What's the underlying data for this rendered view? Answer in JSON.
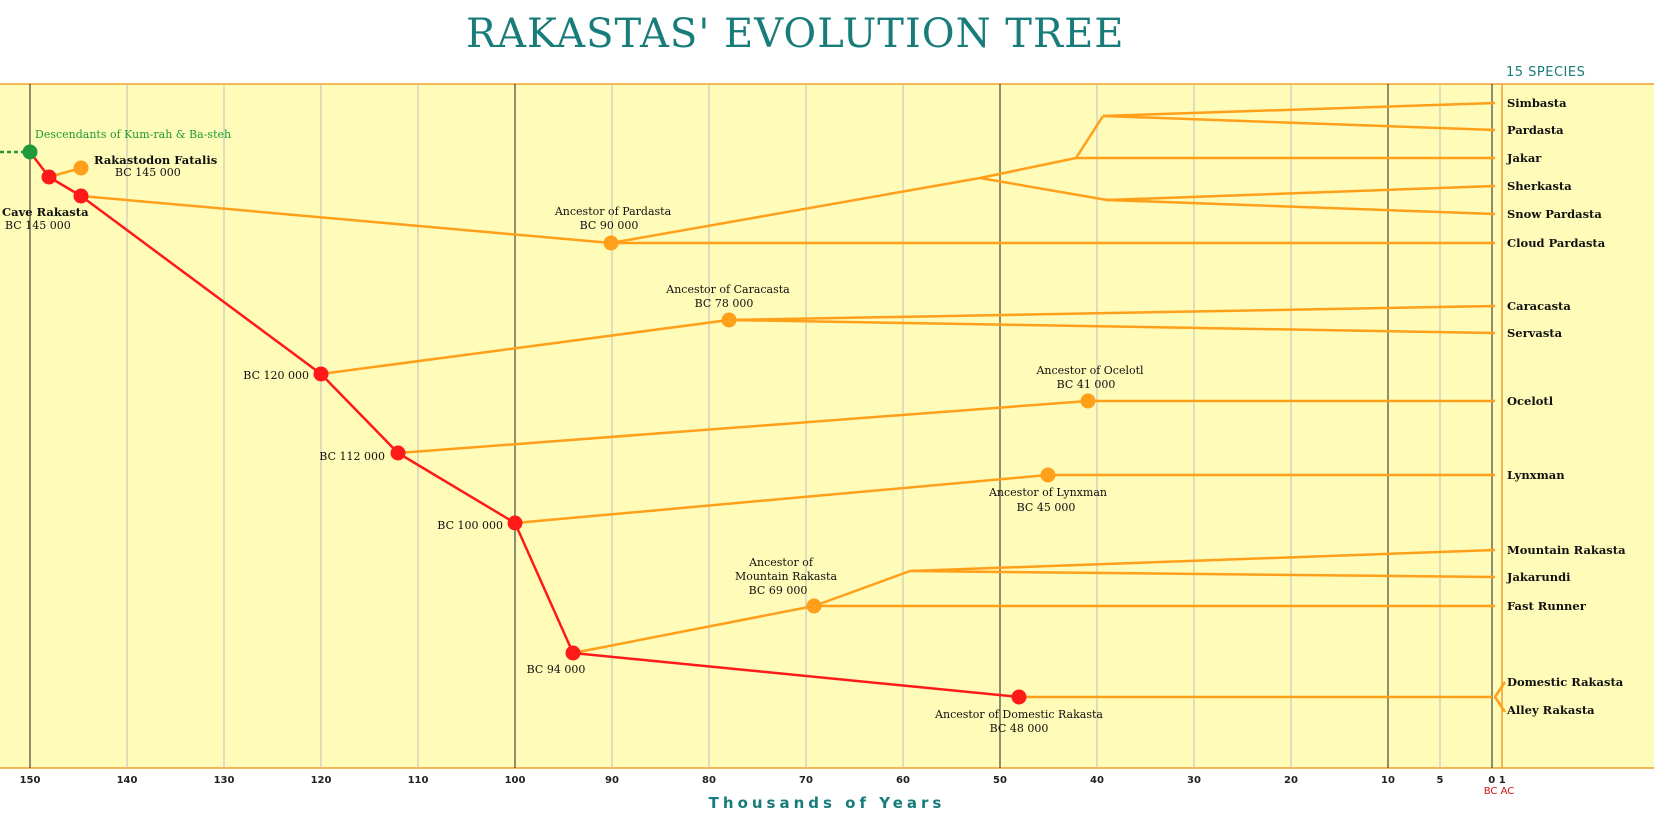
{
  "title": "RAKASTAS' EVOLUTION TREE",
  "species_count_label": "15  SPECIES",
  "axis": {
    "title": "Thousands  of  Years",
    "ticks": [
      "150",
      "140",
      "130",
      "120",
      "110",
      "100",
      "90",
      "80",
      "70",
      "60",
      "50",
      "40",
      "30",
      "20",
      "10",
      "5",
      "0 1"
    ],
    "era_label": "BC AC"
  },
  "origin_label": "Descendants of Kum-rah & Ba-steh",
  "nodes": {
    "cave": {
      "name": "Cave Rakasta",
      "date": "BC 145 000"
    },
    "fatalis": {
      "name": "Rakastodon Fatalis",
      "date": "BC 145 000"
    },
    "n120": {
      "date": "BC 120 000"
    },
    "n112": {
      "date": "BC 112 000"
    },
    "n100": {
      "date": "BC 100 000"
    },
    "n94": {
      "date": "BC 94 000"
    },
    "pardasta": {
      "name": "Ancestor of Pardasta",
      "date": "BC 90 000"
    },
    "caracasta": {
      "name": "Ancestor of Caracasta",
      "date": "BC 78 000"
    },
    "ocelotl": {
      "name": "Ancestor of Ocelotl",
      "date": "BC 41 000"
    },
    "lynxman": {
      "name": "Ancestor of Lynxman",
      "date": "BC 45 000"
    },
    "mountain": {
      "name1": "Ancestor of",
      "name2": "Mountain Rakasta",
      "date": "BC 69 000"
    },
    "domestic": {
      "name": "Ancestor of Domestic Rakasta",
      "date": "BC 48 000"
    }
  },
  "species": [
    "Simbasta",
    "Pardasta",
    "Jakar",
    "Sherkasta",
    "Snow Pardasta",
    "Cloud Pardasta",
    "Caracasta",
    "Servasta",
    "Ocelotl",
    "Lynxman",
    "Mountain Rakasta",
    "Jakarundi",
    "Fast Runner",
    "Domestic Rakasta",
    "Alley Rakasta"
  ],
  "colors": {
    "background": "#fffbb8",
    "main_lineage": "#ff1a1a",
    "branch": "#ff9f1a",
    "origin": "#1e9a3a",
    "frame": "#f0a030",
    "title": "#177c7a"
  }
}
